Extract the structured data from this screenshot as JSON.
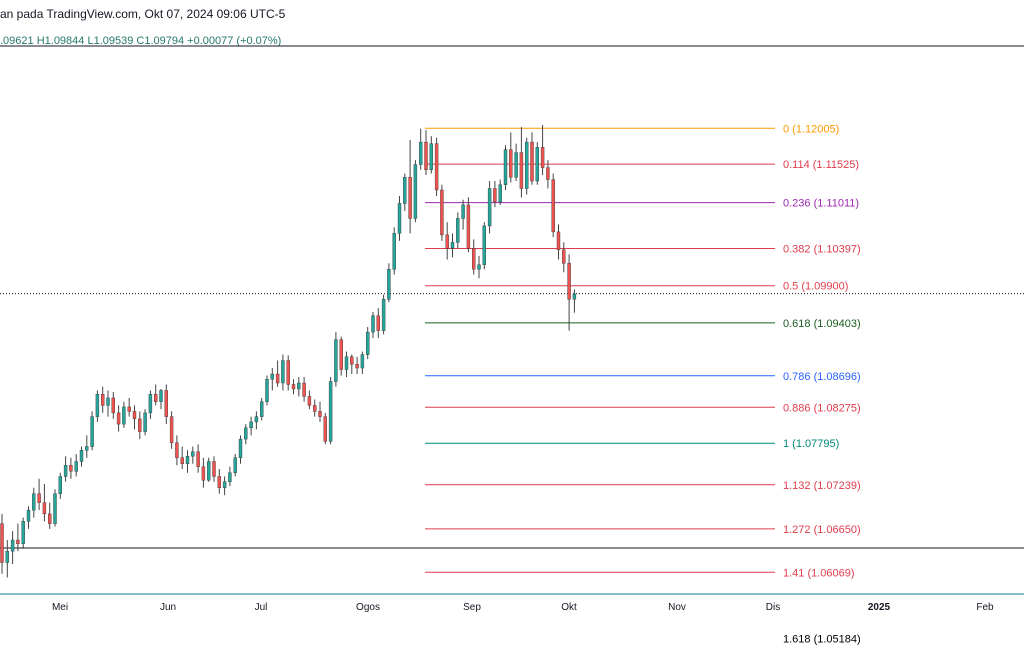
{
  "header": {
    "title": "an pada TradingView.com, Okt 07, 2024 09:06 UTC-5",
    "ohlc": ".09621  H1.09844  L1.09539  C1.09794  +0.00077 (+0.07%)"
  },
  "chart_data": {
    "type": "candlestick",
    "price_range": [
      1.0495,
      1.1372
    ],
    "current_price": 1.09794,
    "x_tick_labels": [
      "Mei",
      "Jun",
      "Jul",
      "Ogos",
      "Sep",
      "Okt",
      "Nov",
      "Dis",
      "2025",
      "Feb"
    ],
    "x_tick_bold": [
      false,
      false,
      false,
      false,
      false,
      false,
      false,
      false,
      true,
      false
    ],
    "candles": [
      {
        "o": 1.0672,
        "h": 1.0685,
        "l": 1.0605,
        "c": 1.062
      },
      {
        "o": 1.062,
        "h": 1.065,
        "l": 1.06,
        "c": 1.0635
      },
      {
        "o": 1.0635,
        "h": 1.0662,
        "l": 1.0618,
        "c": 1.065
      },
      {
        "o": 1.065,
        "h": 1.0672,
        "l": 1.0635,
        "c": 1.0645
      },
      {
        "o": 1.0645,
        "h": 1.068,
        "l": 1.064,
        "c": 1.0675
      },
      {
        "o": 1.0675,
        "h": 1.0695,
        "l": 1.0665,
        "c": 1.069
      },
      {
        "o": 1.069,
        "h": 1.072,
        "l": 1.068,
        "c": 1.0712
      },
      {
        "o": 1.0712,
        "h": 1.0732,
        "l": 1.069,
        "c": 1.07
      },
      {
        "o": 1.07,
        "h": 1.0725,
        "l": 1.0675,
        "c": 1.0685
      },
      {
        "o": 1.0685,
        "h": 1.07,
        "l": 1.0665,
        "c": 1.0672
      },
      {
        "o": 1.0672,
        "h": 1.0718,
        "l": 1.0668,
        "c": 1.0712
      },
      {
        "o": 1.0712,
        "h": 1.074,
        "l": 1.0705,
        "c": 1.0735
      },
      {
        "o": 1.0735,
        "h": 1.0762,
        "l": 1.0728,
        "c": 1.075
      },
      {
        "o": 1.075,
        "h": 1.076,
        "l": 1.0732,
        "c": 1.0742
      },
      {
        "o": 1.0742,
        "h": 1.0765,
        "l": 1.0735,
        "c": 1.0755
      },
      {
        "o": 1.0755,
        "h": 1.0775,
        "l": 1.0748,
        "c": 1.077
      },
      {
        "o": 1.077,
        "h": 1.079,
        "l": 1.076,
        "c": 1.0775
      },
      {
        "o": 1.0775,
        "h": 1.0822,
        "l": 1.077,
        "c": 1.0815
      },
      {
        "o": 1.0815,
        "h": 1.085,
        "l": 1.0808,
        "c": 1.0845
      },
      {
        "o": 1.0845,
        "h": 1.0855,
        "l": 1.082,
        "c": 1.083
      },
      {
        "o": 1.083,
        "h": 1.085,
        "l": 1.0815,
        "c": 1.084
      },
      {
        "o": 1.084,
        "h": 1.0848,
        "l": 1.0812,
        "c": 1.082
      },
      {
        "o": 1.082,
        "h": 1.083,
        "l": 1.0795,
        "c": 1.0805
      },
      {
        "o": 1.0805,
        "h": 1.0835,
        "l": 1.08,
        "c": 1.0828
      },
      {
        "o": 1.0828,
        "h": 1.084,
        "l": 1.0815,
        "c": 1.0822
      },
      {
        "o": 1.0822,
        "h": 1.083,
        "l": 1.0798,
        "c": 1.0812
      },
      {
        "o": 1.0812,
        "h": 1.0822,
        "l": 1.0785,
        "c": 1.0795
      },
      {
        "o": 1.0795,
        "h": 1.0825,
        "l": 1.079,
        "c": 1.082
      },
      {
        "o": 1.082,
        "h": 1.085,
        "l": 1.0812,
        "c": 1.0845
      },
      {
        "o": 1.0845,
        "h": 1.0858,
        "l": 1.083,
        "c": 1.0835
      },
      {
        "o": 1.0835,
        "h": 1.0852,
        "l": 1.0825,
        "c": 1.085
      },
      {
        "o": 1.085,
        "h": 1.0858,
        "l": 1.0805,
        "c": 1.0815
      },
      {
        "o": 1.0815,
        "h": 1.0822,
        "l": 1.0772,
        "c": 1.078
      },
      {
        "o": 1.078,
        "h": 1.079,
        "l": 1.075,
        "c": 1.076
      },
      {
        "o": 1.076,
        "h": 1.0775,
        "l": 1.0745,
        "c": 1.0752
      },
      {
        "o": 1.0752,
        "h": 1.077,
        "l": 1.074,
        "c": 1.0762
      },
      {
        "o": 1.0762,
        "h": 1.0775,
        "l": 1.0752,
        "c": 1.0768
      },
      {
        "o": 1.0768,
        "h": 1.0778,
        "l": 1.074,
        "c": 1.0748
      },
      {
        "o": 1.0748,
        "h": 1.076,
        "l": 1.072,
        "c": 1.073
      },
      {
        "o": 1.073,
        "h": 1.076,
        "l": 1.0728,
        "c": 1.0755
      },
      {
        "o": 1.0755,
        "h": 1.0762,
        "l": 1.0728,
        "c": 1.0735
      },
      {
        "o": 1.0735,
        "h": 1.0745,
        "l": 1.0712,
        "c": 1.072
      },
      {
        "o": 1.072,
        "h": 1.0735,
        "l": 1.071,
        "c": 1.0728
      },
      {
        "o": 1.0728,
        "h": 1.0748,
        "l": 1.0722,
        "c": 1.074
      },
      {
        "o": 1.074,
        "h": 1.0765,
        "l": 1.0735,
        "c": 1.076
      },
      {
        "o": 1.076,
        "h": 1.079,
        "l": 1.0752,
        "c": 1.0785
      },
      {
        "o": 1.0785,
        "h": 1.0805,
        "l": 1.0778,
        "c": 1.08
      },
      {
        "o": 1.08,
        "h": 1.0815,
        "l": 1.079,
        "c": 1.0808
      },
      {
        "o": 1.0808,
        "h": 1.0822,
        "l": 1.0798,
        "c": 1.0815
      },
      {
        "o": 1.0815,
        "h": 1.084,
        "l": 1.081,
        "c": 1.0835
      },
      {
        "o": 1.0835,
        "h": 1.087,
        "l": 1.083,
        "c": 1.0865
      },
      {
        "o": 1.0865,
        "h": 1.088,
        "l": 1.085,
        "c": 1.0872
      },
      {
        "o": 1.0872,
        "h": 1.089,
        "l": 1.0855,
        "c": 1.086
      },
      {
        "o": 1.086,
        "h": 1.0898,
        "l": 1.085,
        "c": 1.089
      },
      {
        "o": 1.089,
        "h": 1.0897,
        "l": 1.085,
        "c": 1.0858
      },
      {
        "o": 1.0858,
        "h": 1.0865,
        "l": 1.0845,
        "c": 1.0852
      },
      {
        "o": 1.0852,
        "h": 1.0868,
        "l": 1.0842,
        "c": 1.086
      },
      {
        "o": 1.086,
        "h": 1.0868,
        "l": 1.0835,
        "c": 1.0842
      },
      {
        "o": 1.0842,
        "h": 1.085,
        "l": 1.0825,
        "c": 1.083
      },
      {
        "o": 1.083,
        "h": 1.0838,
        "l": 1.0815,
        "c": 1.0822
      },
      {
        "o": 1.0822,
        "h": 1.0835,
        "l": 1.0808,
        "c": 1.0815
      },
      {
        "o": 1.0815,
        "h": 1.082,
        "l": 1.0778,
        "c": 1.0782
      },
      {
        "o": 1.0782,
        "h": 1.0868,
        "l": 1.0778,
        "c": 1.0862
      },
      {
        "o": 1.0862,
        "h": 1.0928,
        "l": 1.0855,
        "c": 1.0918
      },
      {
        "o": 1.0918,
        "h": 1.0922,
        "l": 1.087,
        "c": 1.0878
      },
      {
        "o": 1.0878,
        "h": 1.0902,
        "l": 1.0868,
        "c": 1.0895
      },
      {
        "o": 1.0895,
        "h": 1.0898,
        "l": 1.0872,
        "c": 1.0885
      },
      {
        "o": 1.0885,
        "h": 1.0895,
        "l": 1.0872,
        "c": 1.088
      },
      {
        "o": 1.088,
        "h": 1.0902,
        "l": 1.0872,
        "c": 1.0898
      },
      {
        "o": 1.0898,
        "h": 1.0935,
        "l": 1.0892,
        "c": 1.0928
      },
      {
        "o": 1.0928,
        "h": 1.0955,
        "l": 1.092,
        "c": 1.095
      },
      {
        "o": 1.095,
        "h": 1.096,
        "l": 1.092,
        "c": 1.093
      },
      {
        "o": 1.093,
        "h": 1.0978,
        "l": 1.0925,
        "c": 1.0972
      },
      {
        "o": 1.0972,
        "h": 1.102,
        "l": 1.0968,
        "c": 1.1012
      },
      {
        "o": 1.1012,
        "h": 1.1068,
        "l": 1.1005,
        "c": 1.106
      },
      {
        "o": 1.106,
        "h": 1.111,
        "l": 1.105,
        "c": 1.11
      },
      {
        "o": 1.11,
        "h": 1.114,
        "l": 1.109,
        "c": 1.1135
      },
      {
        "o": 1.1135,
        "h": 1.1185,
        "l": 1.106,
        "c": 1.108
      },
      {
        "o": 1.108,
        "h": 1.1158,
        "l": 1.1075,
        "c": 1.1152
      },
      {
        "o": 1.1152,
        "h": 1.12,
        "l": 1.1145,
        "c": 1.1182
      },
      {
        "o": 1.1182,
        "h": 1.1198,
        "l": 1.1138,
        "c": 1.1145
      },
      {
        "o": 1.1145,
        "h": 1.119,
        "l": 1.114,
        "c": 1.118
      },
      {
        "o": 1.118,
        "h": 1.1188,
        "l": 1.111,
        "c": 1.1118
      },
      {
        "o": 1.1118,
        "h": 1.1125,
        "l": 1.105,
        "c": 1.1058
      },
      {
        "o": 1.1058,
        "h": 1.1075,
        "l": 1.1025,
        "c": 1.104
      },
      {
        "o": 1.104,
        "h": 1.106,
        "l": 1.1028,
        "c": 1.1048
      },
      {
        "o": 1.1048,
        "h": 1.1088,
        "l": 1.104,
        "c": 1.108
      },
      {
        "o": 1.108,
        "h": 1.1105,
        "l": 1.1065,
        "c": 1.1098
      },
      {
        "o": 1.1098,
        "h": 1.1108,
        "l": 1.1035,
        "c": 1.104
      },
      {
        "o": 1.104,
        "h": 1.1052,
        "l": 1.1005,
        "c": 1.1012
      },
      {
        "o": 1.1012,
        "h": 1.103,
        "l": 1.1,
        "c": 1.1018
      },
      {
        "o": 1.1018,
        "h": 1.1075,
        "l": 1.1012,
        "c": 1.107
      },
      {
        "o": 1.107,
        "h": 1.113,
        "l": 1.106,
        "c": 1.112
      },
      {
        "o": 1.112,
        "h": 1.113,
        "l": 1.1095,
        "c": 1.1102
      },
      {
        "o": 1.1102,
        "h": 1.1132,
        "l": 1.1098,
        "c": 1.1125
      },
      {
        "o": 1.1125,
        "h": 1.1178,
        "l": 1.1118,
        "c": 1.1172
      },
      {
        "o": 1.1172,
        "h": 1.1195,
        "l": 1.1128,
        "c": 1.1135
      },
      {
        "o": 1.1135,
        "h": 1.118,
        "l": 1.113,
        "c": 1.1168
      },
      {
        "o": 1.1168,
        "h": 1.1202,
        "l": 1.1108,
        "c": 1.112
      },
      {
        "o": 1.112,
        "h": 1.1188,
        "l": 1.1112,
        "c": 1.1182
      },
      {
        "o": 1.1182,
        "h": 1.1195,
        "l": 1.1125,
        "c": 1.113
      },
      {
        "o": 1.113,
        "h": 1.1182,
        "l": 1.1125,
        "c": 1.1175
      },
      {
        "o": 1.1175,
        "h": 1.1205,
        "l": 1.1138,
        "c": 1.1148
      },
      {
        "o": 1.1148,
        "h": 1.1158,
        "l": 1.112,
        "c": 1.1132
      },
      {
        "o": 1.1132,
        "h": 1.114,
        "l": 1.1055,
        "c": 1.1062
      },
      {
        "o": 1.1062,
        "h": 1.1072,
        "l": 1.1025,
        "c": 1.1038
      },
      {
        "o": 1.1038,
        "h": 1.1048,
        "l": 1.1008,
        "c": 1.102
      },
      {
        "o": 1.102,
        "h": 1.1032,
        "l": 1.093,
        "c": 1.0972
      },
      {
        "o": 1.0972,
        "h": 1.0985,
        "l": 1.0954,
        "c": 1.0979
      }
    ],
    "fib_levels": [
      {
        "label": "0 (1.12005)",
        "price": 1.12005,
        "color": "#ff9800"
      },
      {
        "label": "0.114 (1.11525)",
        "price": 1.11525,
        "color": "#e03c4b"
      },
      {
        "label": "0.236 (1.11011)",
        "price": 1.11011,
        "color": "#9c27b0"
      },
      {
        "label": "0.382 (1.10397)",
        "price": 1.10397,
        "color": "#e03c4b"
      },
      {
        "label": "0.5 (1.09900)",
        "price": 1.099,
        "color": "#e03c4b"
      },
      {
        "label": "0.618 (1.09403)",
        "price": 1.09403,
        "color": "#1b5e20"
      },
      {
        "label": "0.786 (1.08696)",
        "price": 1.08696,
        "color": "#2962ff"
      },
      {
        "label": "0.886 (1.08275)",
        "price": 1.08275,
        "color": "#e03c4b"
      },
      {
        "label": "1 (1.07795)",
        "price": 1.07795,
        "color": "#00897b"
      },
      {
        "label": "1.132 (1.07239)",
        "price": 1.07239,
        "color": "#e03c4b"
      },
      {
        "label": "1.272 (1.06650)",
        "price": 1.0665,
        "color": "#e03c4b"
      },
      {
        "label": "1.41 (1.06069)",
        "price": 1.06069,
        "color": "#e03c4b"
      },
      {
        "label": "1.618 (1.05184)",
        "price": 1.05184,
        "color": "#000000"
      }
    ],
    "colors": {
      "up": "#26a69a",
      "down": "#ef5350",
      "wick": "#444444",
      "text": "#131722"
    }
  }
}
